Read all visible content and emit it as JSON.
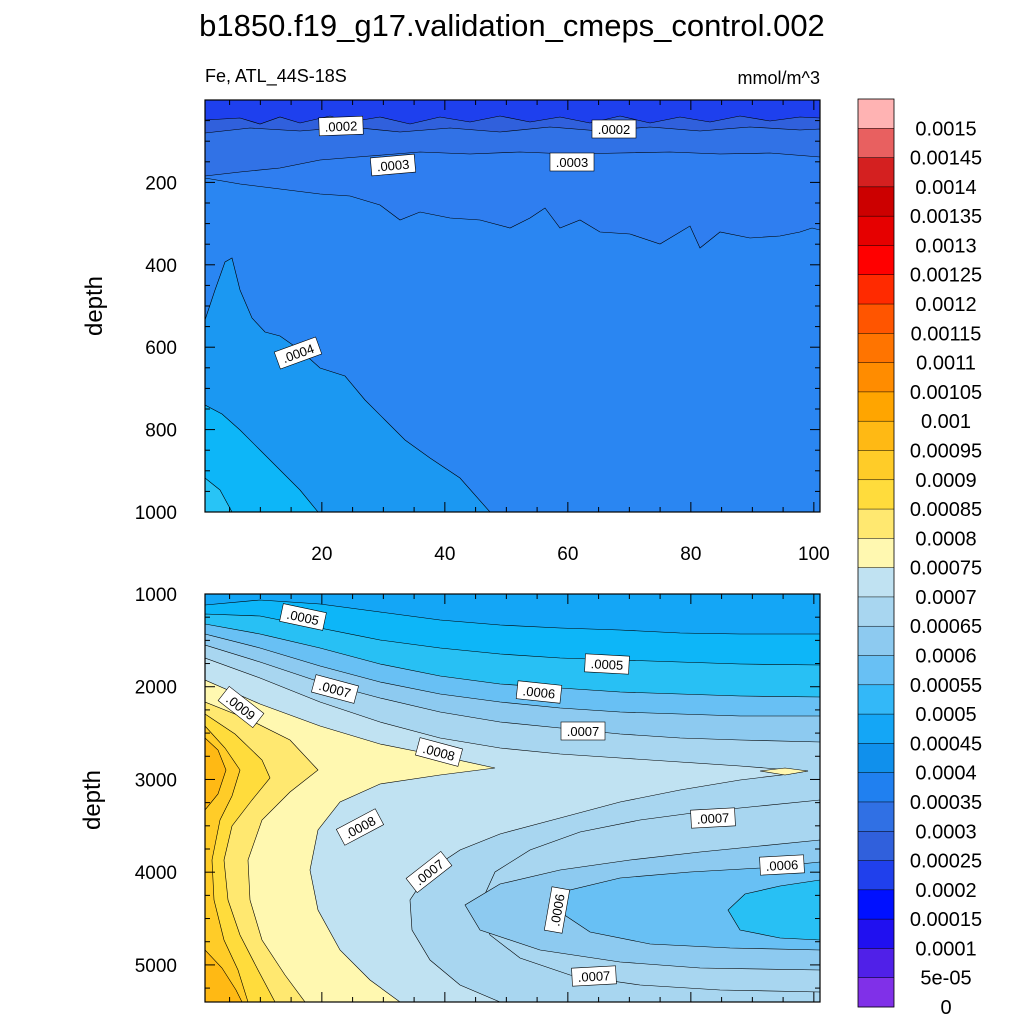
{
  "title": "b1850.f19_g17.validation_cmeps_control.002",
  "variable_label": "Fe, ATL_44S-18S",
  "units_label": "mmol/m^3",
  "chart_data": [
    {
      "type": "heatmap",
      "panel": "upper",
      "ylabel": "depth",
      "xlabel": "",
      "xlim": [
        1,
        101
      ],
      "ylim": [
        0,
        1000
      ],
      "y_inverted": true,
      "x_ticks": [
        "20",
        "40",
        "60",
        "80",
        "100"
      ],
      "y_ticks": [
        "200",
        "400",
        "600",
        "800",
        "1000"
      ],
      "contour_labels": [
        ".0002",
        ".0002",
        ".0003",
        ".0003",
        ".0004"
      ],
      "description": "Fe concentration increases with depth from ~0.0001 near surface to ~0.00045 near 1000 m at low x"
    },
    {
      "type": "heatmap",
      "panel": "lower",
      "ylabel": "depth",
      "xlabel": "",
      "xlim": [
        1,
        101
      ],
      "ylim": [
        1000,
        5400
      ],
      "y_inverted": true,
      "y_ticks": [
        "1000",
        "2000",
        "3000",
        "4000",
        "5000"
      ],
      "contour_labels": [
        ".0005",
        ".0005",
        ".0007",
        ".0006",
        ".0009",
        ".0007",
        ".0008",
        ".0008",
        ".0007",
        ".0007",
        ".0006",
        ".0006",
        ".0007"
      ],
      "description": "High Fe (~0.0009-0.00095) at low x around 2000-3500 m and near bottom; lower values (~0.0005) toward high x"
    }
  ],
  "colorbar": {
    "labels": [
      "0.0015",
      "0.00145",
      "0.0014",
      "0.00135",
      "0.0013",
      "0.00125",
      "0.0012",
      "0.00115",
      "0.0011",
      "0.00105",
      "0.001",
      "0.00095",
      "0.0009",
      "0.00085",
      "0.0008",
      "0.00075",
      "0.0007",
      "0.00065",
      "0.0006",
      "0.00055",
      "0.0005",
      "0.00045",
      "0.0004",
      "0.00035",
      "0.0003",
      "0.00025",
      "0.0002",
      "0.00015",
      "0.0001",
      "5e-05",
      "0"
    ],
    "colors": [
      "#ffb3b3",
      "#e86060",
      "#d42020",
      "#cc0000",
      "#e60000",
      "#ff0000",
      "#ff2a00",
      "#ff5500",
      "#ff7400",
      "#ff8c00",
      "#ffa500",
      "#ffb914",
      "#ffcc28",
      "#ffdc3c",
      "#ffe870",
      "#fff8b0",
      "#c0e2f2",
      "#a8d6f0",
      "#8dcaf0",
      "#68c0f4",
      "#33b8f8",
      "#14a6f6",
      "#1090ec",
      "#2080f0",
      "#3070e4",
      "#3060dc",
      "#2040ec",
      "#0010ff",
      "#2010f0",
      "#5020e8",
      "#8030e8"
    ]
  }
}
